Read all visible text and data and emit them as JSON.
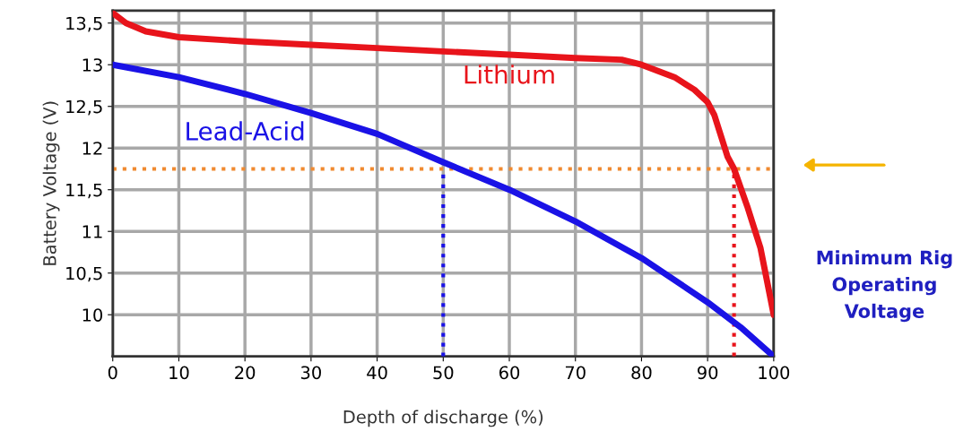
{
  "chart_data": {
    "type": "line",
    "xlabel": "Depth of discharge (%)",
    "ylabel": "Battery Voltage (V)",
    "xlim": [
      0,
      100
    ],
    "xticks": [
      0,
      10,
      20,
      30,
      40,
      50,
      60,
      70,
      80,
      90,
      100
    ],
    "ylim": [
      9.5,
      13.65
    ],
    "yticks": [
      {
        "value": 10,
        "label": "10"
      },
      {
        "value": 10.5,
        "label": "10,5"
      },
      {
        "value": 11,
        "label": "11"
      },
      {
        "value": 11.5,
        "label": "11,5"
      },
      {
        "value": 12,
        "label": "12"
      },
      {
        "value": 12.5,
        "label": "12,5"
      },
      {
        "value": 13,
        "label": "13"
      },
      {
        "value": 13.5,
        "label": "13,5"
      }
    ],
    "grid": true,
    "series": [
      {
        "name": "Lithium",
        "color": "#e8141b",
        "x": [
          0,
          2,
          5,
          10,
          20,
          30,
          40,
          50,
          60,
          70,
          77,
          80,
          85,
          88,
          90,
          91,
          92,
          93,
          94,
          96,
          98,
          100
        ],
        "values": [
          13.62,
          13.5,
          13.4,
          13.33,
          13.28,
          13.24,
          13.2,
          13.16,
          13.12,
          13.08,
          13.06,
          13.0,
          12.85,
          12.7,
          12.55,
          12.4,
          12.15,
          11.9,
          11.75,
          11.3,
          10.8,
          10.0
        ]
      },
      {
        "name": "Lead-Acid",
        "color": "#1a12e6",
        "x": [
          0,
          10,
          20,
          30,
          40,
          50,
          60,
          70,
          80,
          90,
          95,
          100
        ],
        "values": [
          13.0,
          12.85,
          12.65,
          12.42,
          12.17,
          11.83,
          11.5,
          11.12,
          10.68,
          10.15,
          9.85,
          9.5
        ]
      },
      {
        "color": "#1a12e6",
        "line_style": "dotted",
        "x": [
          50,
          50
        ],
        "values": [
          9.5,
          11.75
        ]
      },
      {
        "color": "#e8141b",
        "line_style": "dotted",
        "x": [
          94,
          94
        ],
        "values": [
          9.5,
          11.75
        ]
      }
    ],
    "ref_lines": [
      {
        "axis": "y",
        "value": 11.75,
        "color": "#f08a30",
        "line_style": "dotted"
      }
    ],
    "annotations": [
      "Minimum Rig Operating Voltage"
    ]
  }
}
